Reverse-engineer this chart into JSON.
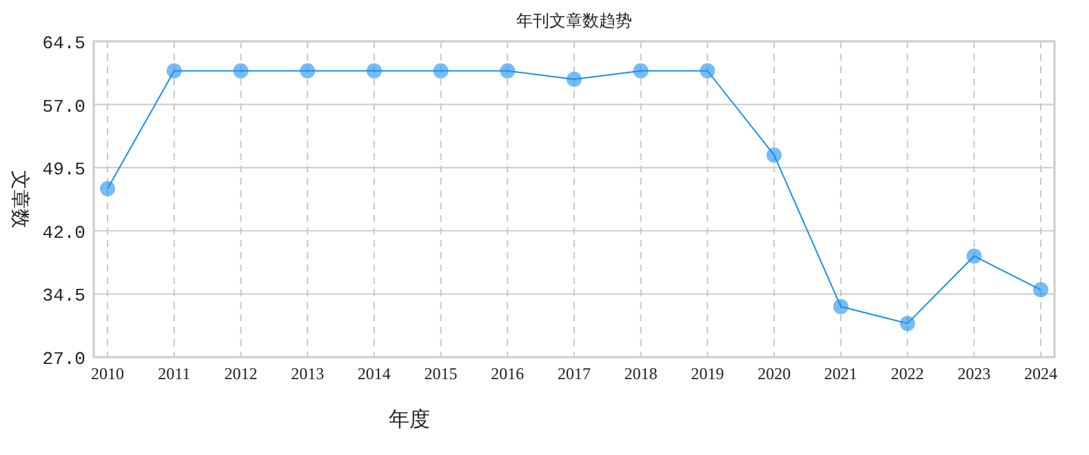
{
  "chart_data": {
    "type": "line",
    "title": "年刊文章数趋势",
    "xlabel": "年度",
    "ylabel": "文章数",
    "categories": [
      "2010",
      "2011",
      "2012",
      "2013",
      "2014",
      "2015",
      "2016",
      "2017",
      "2018",
      "2019",
      "2020",
      "2021",
      "2022",
      "2023",
      "2024"
    ],
    "series": [
      {
        "color": "#1a90f0",
        "values": [
          47,
          61,
          61,
          61,
          61,
          61,
          61,
          60,
          61,
          61,
          51,
          33,
          31,
          39,
          35
        ]
      }
    ],
    "ylim": [
      27,
      64.5
    ],
    "yticks": [
      {
        "value": 27,
        "label": "27.0"
      },
      34.5,
      {
        "value": 42,
        "label": "42.0"
      },
      49.5,
      {
        "value": 57,
        "label": "57.0"
      },
      64.5
    ],
    "grid": true,
    "marker": "circle",
    "line_style": "solid"
  }
}
